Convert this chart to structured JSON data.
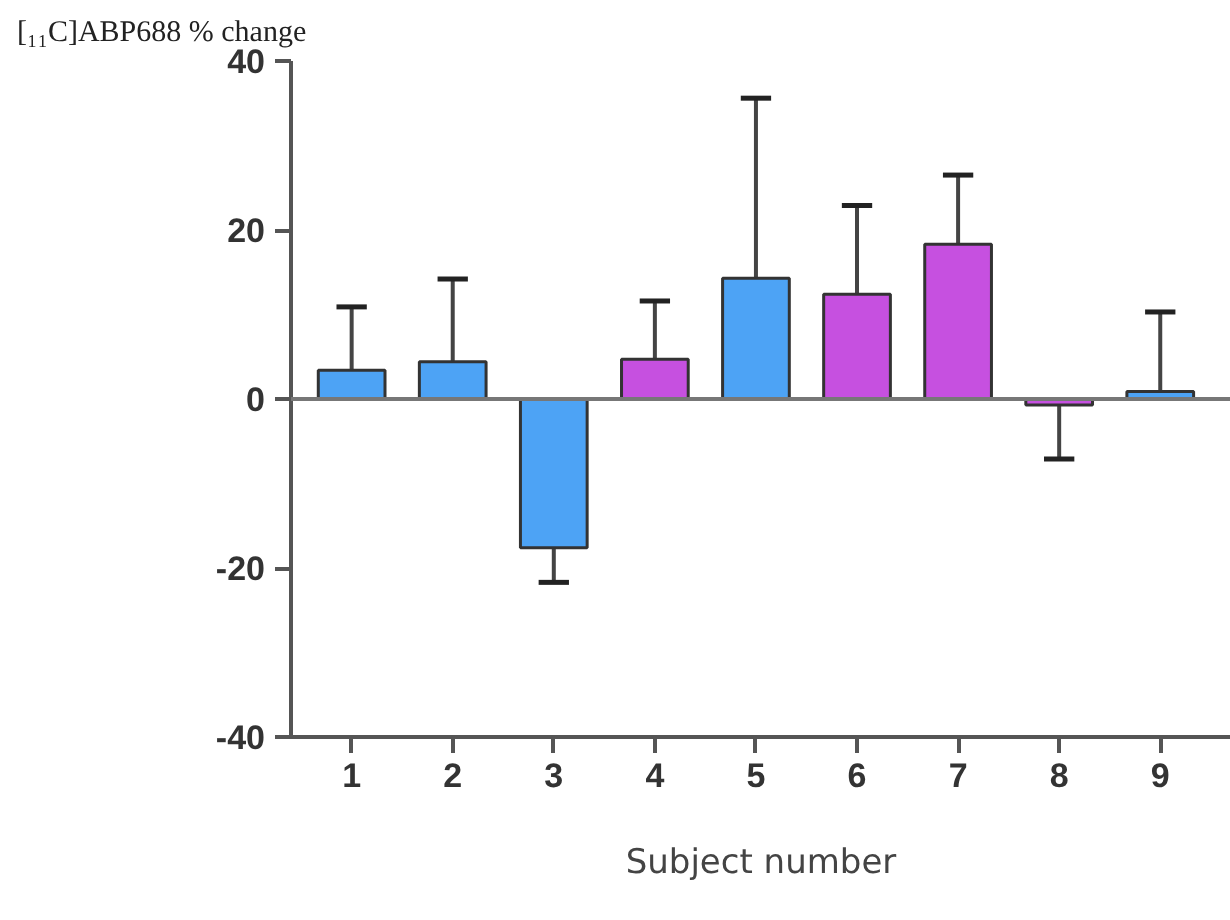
{
  "chart_data": {
    "type": "bar",
    "ylabel": "[₁₁C]ABP688 % change",
    "xlabel": "Subject number",
    "categories": [
      "1",
      "2",
      "3",
      "4",
      "5",
      "6",
      "7",
      "8",
      "9"
    ],
    "values": [
      3.4,
      4.4,
      -17.6,
      4.7,
      14.3,
      12.4,
      18.3,
      -0.7,
      0.9
    ],
    "colors": [
      "#4da3f5",
      "#4da3f5",
      "#4da3f5",
      "#c650e0",
      "#4da3f5",
      "#c650e0",
      "#c650e0",
      "#c650e0",
      "#4da3f5"
    ],
    "errors": [
      [
        3.4,
        10.9
      ],
      [
        4.4,
        14.2
      ],
      [
        -21.7,
        -17.6
      ],
      [
        4.7,
        11.6
      ],
      [
        14.3,
        35.6
      ],
      [
        12.4,
        22.9
      ],
      [
        18.3,
        26.5
      ],
      [
        -7.1,
        -0.7
      ],
      [
        0.9,
        10.3
      ]
    ],
    "ylim": [
      -40,
      40
    ],
    "yticks": [
      -40,
      -20,
      0,
      20,
      40
    ],
    "ref_lines": [
      {
        "axis": "y",
        "value": 0,
        "label": null
      }
    ],
    "grid": false
  }
}
